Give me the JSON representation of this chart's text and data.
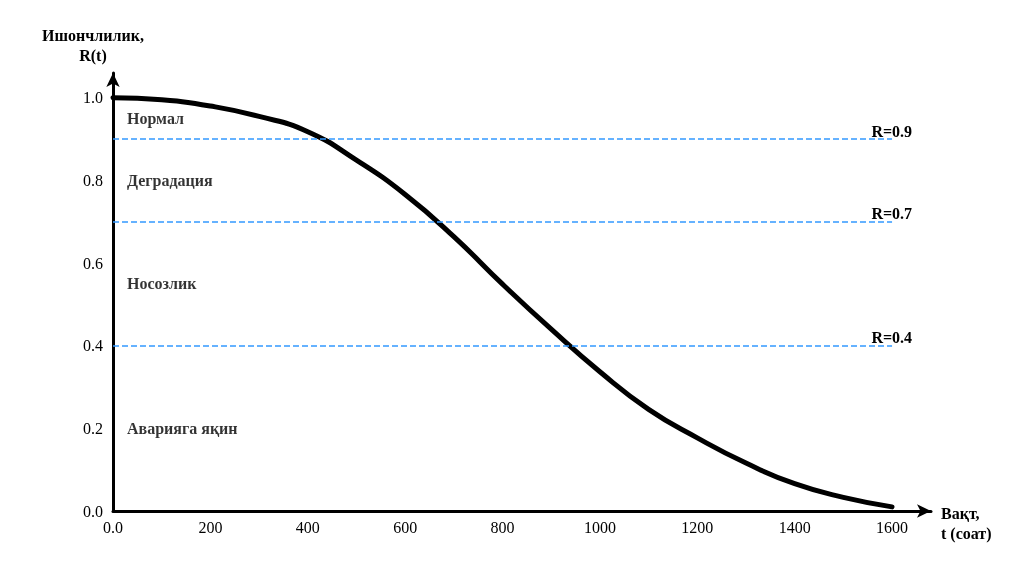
{
  "chart_data": {
    "type": "line",
    "xlabel": "Вақт,\nt (соат)",
    "ylabel": "Ишончлилик,\nR(t)",
    "x": [
      0,
      100,
      200,
      300,
      400,
      500,
      600,
      700,
      800,
      900,
      1000,
      1100,
      1200,
      1300,
      1400,
      1500,
      1600
    ],
    "series": [
      {
        "color": "#000000",
        "values": [
          1.0,
          0.995,
          0.98,
          0.955,
          0.918,
          0.849,
          0.766,
          0.664,
          0.549,
          0.44,
          0.337,
          0.246,
          0.177,
          0.116,
          0.066,
          0.033,
          0.01
        ]
      }
    ],
    "xlim": [
      0,
      1680
    ],
    "ylim": [
      0,
      1.06
    ],
    "xticks": [
      {
        "value": 0,
        "label": "0.0"
      },
      200,
      400,
      600,
      800,
      1000,
      1200,
      1400,
      1600
    ],
    "yticks": [
      {
        "value": 0,
        "label": "0.0"
      },
      {
        "value": 0.2,
        "label": "0.2"
      },
      {
        "value": 0.4,
        "label": "0.4"
      },
      {
        "value": 0.6,
        "label": "0.6"
      },
      {
        "value": 0.8,
        "label": "0.8"
      },
      {
        "value": 1,
        "label": "1.0"
      }
    ],
    "ref_lines": [
      {
        "axis": "y",
        "value": 0.9,
        "label": "R=0.9",
        "color": "#3399ff",
        "line_style": "dashed"
      },
      {
        "axis": "y",
        "value": 0.7,
        "label": "R=0.7",
        "color": "#3399ff",
        "line_style": "dashed"
      },
      {
        "axis": "y",
        "value": 0.4,
        "label": "R=0.4",
        "color": "#3399ff",
        "line_style": "dashed"
      }
    ],
    "annotations": [
      "Нормал",
      "Деградация",
      "Носозлик",
      "Аварияга яқин"
    ],
    "grid": false,
    "marker": "none",
    "line_style": "solid"
  }
}
